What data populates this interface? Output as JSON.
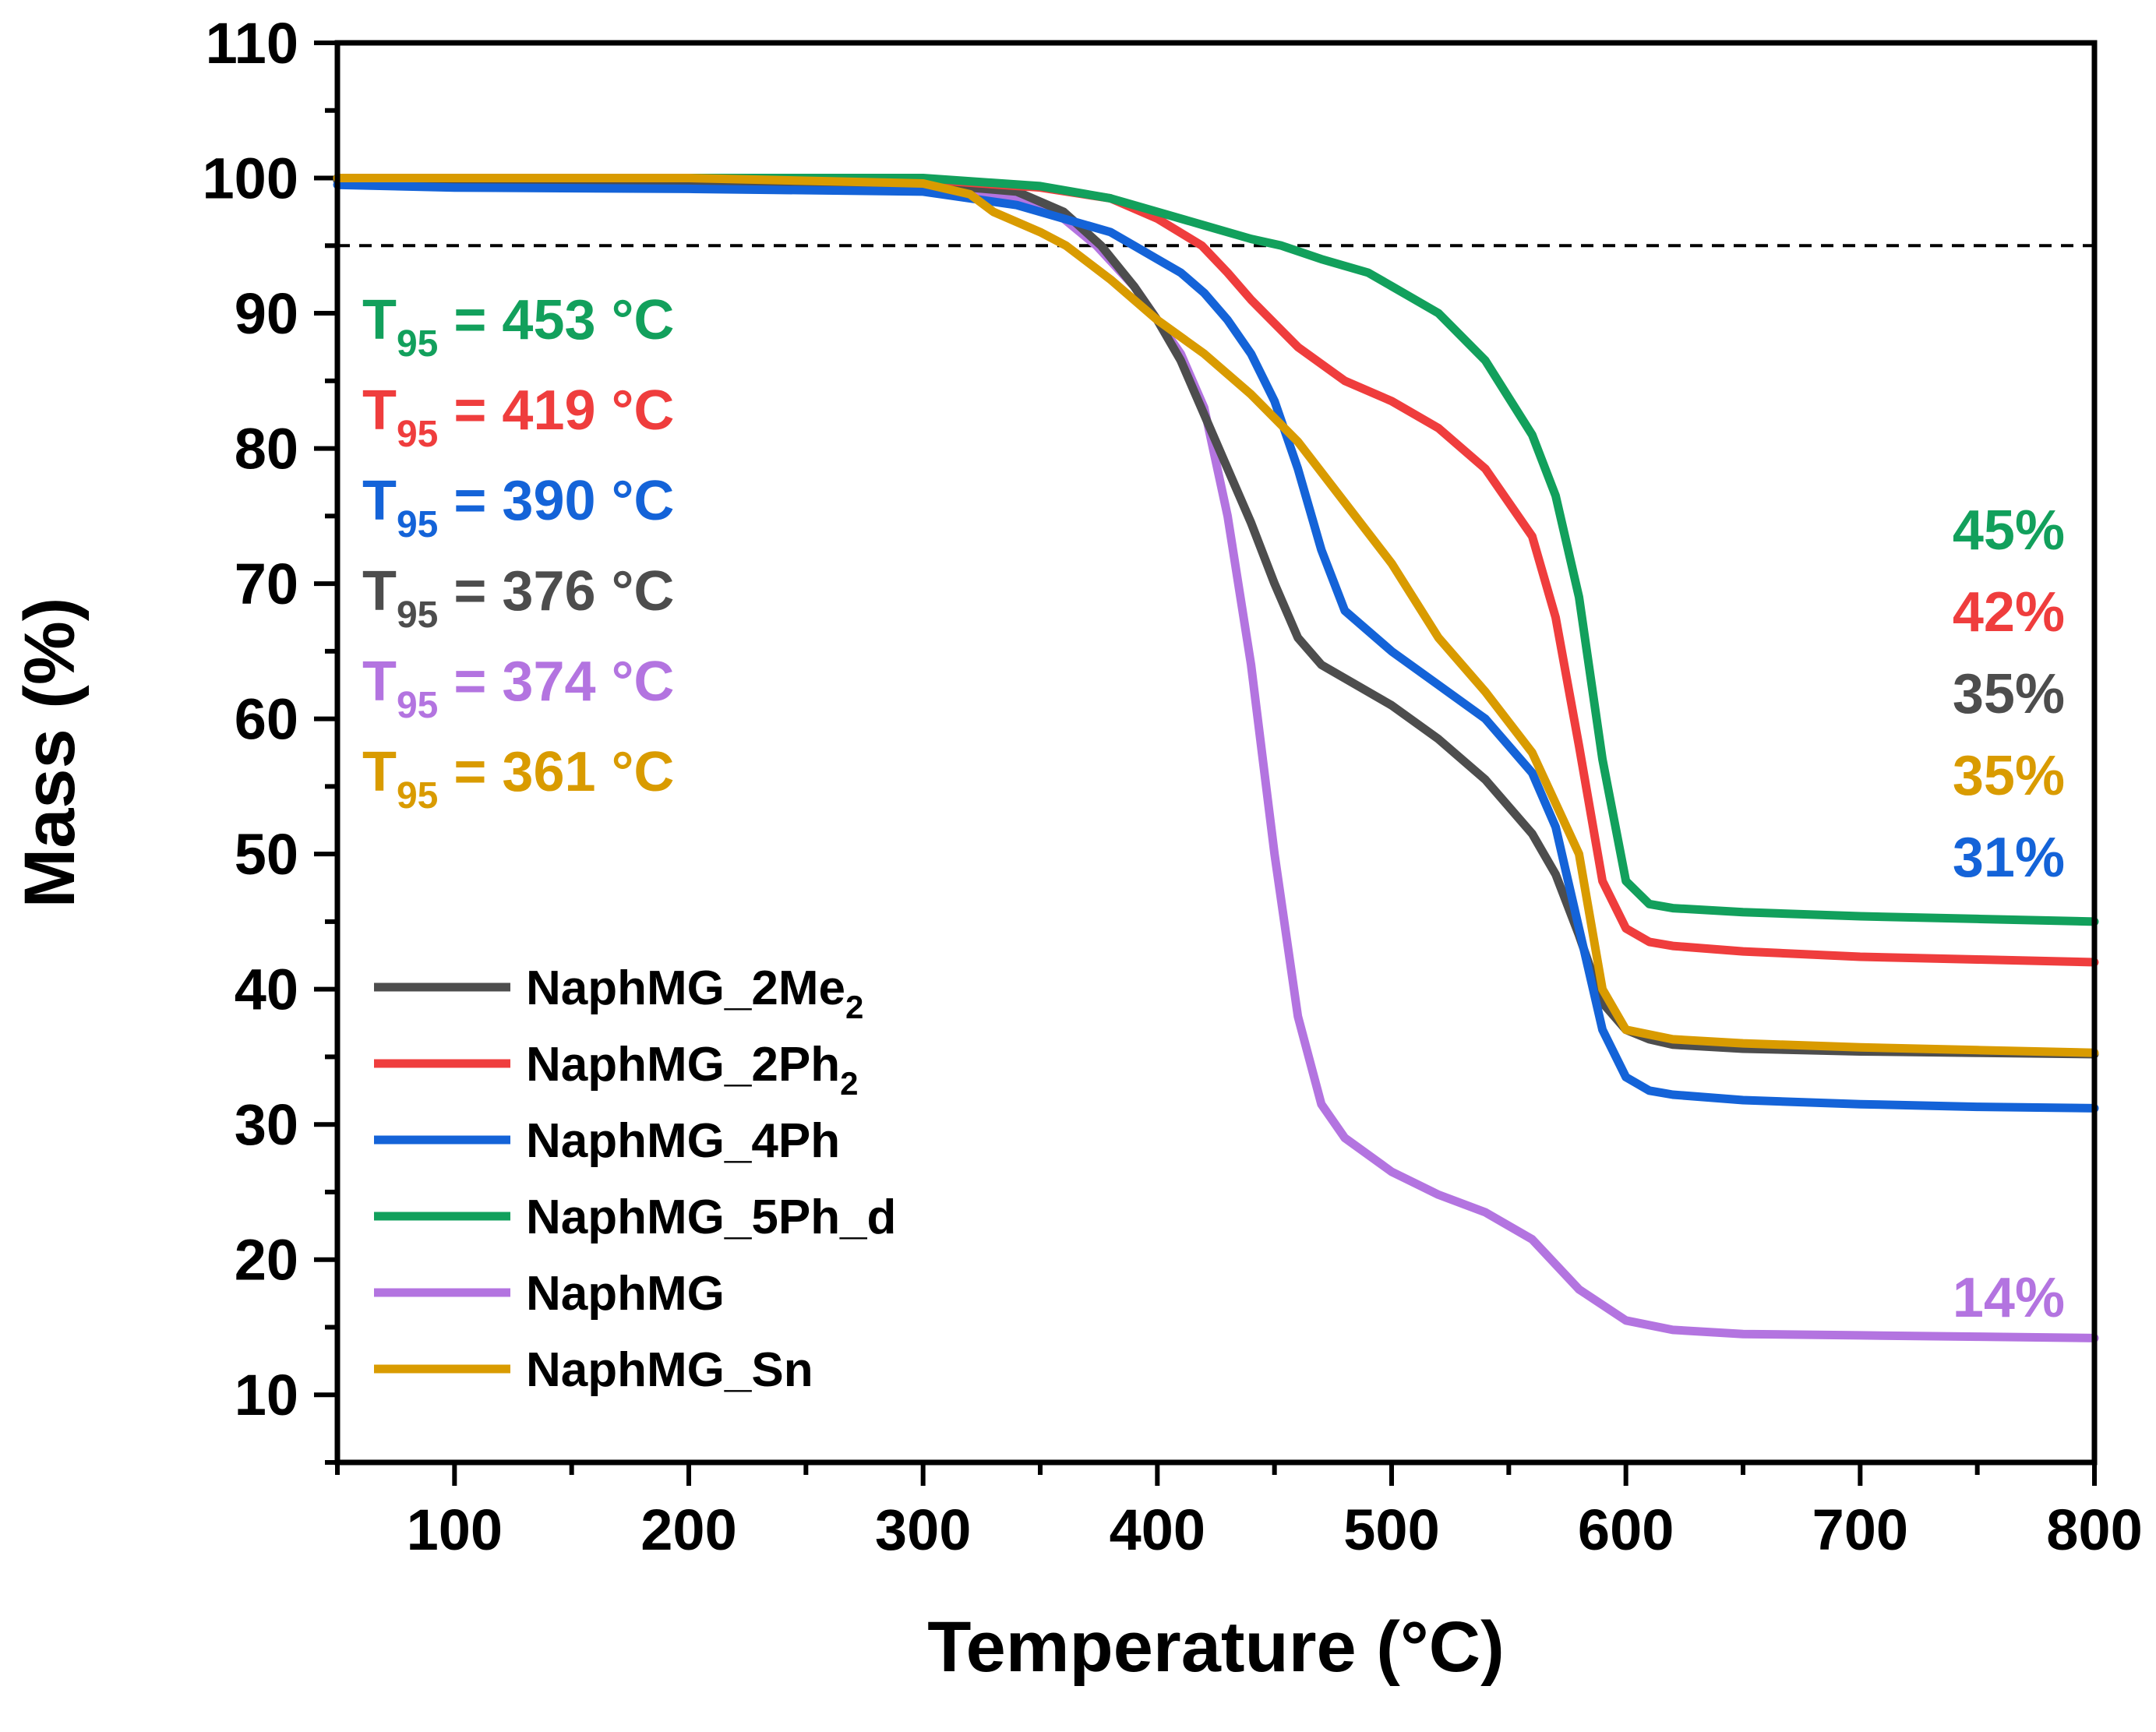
{
  "chart_data": {
    "type": "line",
    "title": "",
    "xlabel": "Temperature (°C)",
    "ylabel": "Mass (%)",
    "xlim": [
      50,
      800
    ],
    "ylim": [
      5,
      110
    ],
    "xticks": [
      100,
      200,
      300,
      400,
      500,
      600,
      700,
      800
    ],
    "yticks": [
      10,
      20,
      30,
      40,
      50,
      60,
      70,
      80,
      90,
      100,
      110
    ],
    "grid": false,
    "legend_placement": "lower-left",
    "reference_line": {
      "y": 95,
      "style": "dashed"
    },
    "series": [
      {
        "name": "NaphMG_2Me",
        "name_subscript": "2",
        "color": "#4d4d4d",
        "t95_label": "376 °C",
        "residue_label": "35%",
        "x": [
          50,
          100,
          200,
          300,
          340,
          360,
          376,
          390,
          400,
          410,
          420,
          430,
          440,
          450,
          460,
          470,
          480,
          500,
          520,
          540,
          560,
          570,
          580,
          590,
          600,
          610,
          620,
          650,
          700,
          750,
          800
        ],
        "y": [
          99.8,
          99.8,
          99.8,
          99.6,
          99.0,
          97.5,
          95.0,
          92.0,
          89.5,
          86.5,
          82.5,
          78.5,
          74.5,
          70.0,
          66.0,
          64.0,
          63.0,
          61.0,
          58.5,
          55.5,
          51.5,
          48.5,
          44.0,
          39.0,
          37.0,
          36.3,
          35.9,
          35.6,
          35.4,
          35.3,
          35.2
        ]
      },
      {
        "name": "NaphMG_2Ph",
        "name_subscript": "2",
        "color": "#ef3d3d",
        "t95_label": "419 °C",
        "residue_label": "42%",
        "x": [
          50,
          100,
          200,
          300,
          350,
          380,
          400,
          419,
          430,
          440,
          460,
          480,
          500,
          520,
          540,
          560,
          570,
          580,
          590,
          600,
          610,
          620,
          650,
          700,
          750,
          800
        ],
        "y": [
          100,
          100,
          100,
          99.9,
          99.3,
          98.5,
          97.0,
          95.0,
          93.0,
          91.0,
          87.5,
          85.0,
          83.5,
          81.5,
          78.5,
          73.5,
          67.5,
          58.0,
          48.0,
          44.5,
          43.5,
          43.2,
          42.8,
          42.4,
          42.2,
          42.0
        ]
      },
      {
        "name": "NaphMG_4Ph",
        "name_subscript": "",
        "color": "#1463d8",
        "t95_label": "390 °C",
        "residue_label": "31%",
        "x": [
          50,
          100,
          200,
          300,
          340,
          360,
          380,
          390,
          400,
          410,
          420,
          430,
          440,
          450,
          460,
          470,
          480,
          500,
          520,
          540,
          560,
          570,
          580,
          590,
          600,
          610,
          620,
          650,
          700,
          750,
          800
        ],
        "y": [
          99.5,
          99.3,
          99.2,
          99.0,
          98.0,
          97.0,
          96.0,
          95.0,
          94.0,
          93.0,
          91.5,
          89.5,
          87.0,
          83.5,
          78.5,
          72.5,
          68.0,
          65.0,
          62.5,
          60.0,
          56.0,
          52.0,
          44.5,
          37.0,
          33.5,
          32.5,
          32.2,
          31.8,
          31.5,
          31.3,
          31.2
        ]
      },
      {
        "name": "NaphMG_5Ph_d",
        "name_subscript": "",
        "color": "#12a05c",
        "t95_label": "453 °C",
        "residue_label": "45%",
        "x": [
          50,
          100,
          200,
          300,
          350,
          380,
          400,
          420,
          440,
          453,
          470,
          490,
          500,
          520,
          540,
          560,
          570,
          580,
          590,
          600,
          610,
          620,
          650,
          700,
          750,
          800
        ],
        "y": [
          100,
          100,
          100,
          100,
          99.4,
          98.5,
          97.5,
          96.5,
          95.5,
          95.0,
          94.0,
          93.0,
          92.0,
          90.0,
          86.5,
          81.0,
          76.5,
          69.0,
          57.0,
          48.0,
          46.3,
          46.0,
          45.7,
          45.4,
          45.2,
          45.0
        ]
      },
      {
        "name": "NaphMG",
        "name_subscript": "",
        "color": "#b374e0",
        "t95_label": "374 °C",
        "residue_label": "14%",
        "x": [
          50,
          100,
          200,
          250,
          300,
          340,
          360,
          374,
          390,
          400,
          410,
          420,
          430,
          440,
          450,
          460,
          470,
          480,
          500,
          520,
          540,
          560,
          580,
          600,
          620,
          650,
          700,
          750,
          800
        ],
        "y": [
          100,
          100,
          100,
          100,
          99.8,
          98.5,
          97.0,
          95.0,
          92.0,
          89.5,
          87.0,
          83.0,
          75.0,
          64.0,
          50.0,
          38.0,
          31.5,
          29.0,
          26.5,
          24.8,
          23.5,
          21.5,
          17.8,
          15.5,
          14.8,
          14.5,
          14.4,
          14.3,
          14.2
        ]
      },
      {
        "name": "NaphMG_Sn",
        "name_subscript": "",
        "color": "#d99b00",
        "t95_label": "361 °C",
        "residue_label": "35%",
        "x": [
          50,
          100,
          200,
          300,
          320,
          330,
          350,
          361,
          380,
          400,
          420,
          440,
          460,
          480,
          500,
          520,
          540,
          560,
          580,
          590,
          600,
          620,
          650,
          700,
          750,
          800
        ],
        "y": [
          100,
          100,
          100,
          99.6,
          98.8,
          97.5,
          96.0,
          95.0,
          92.5,
          89.5,
          87.0,
          84.0,
          80.5,
          76.0,
          71.5,
          66.0,
          62.0,
          57.5,
          50.0,
          40.0,
          37.0,
          36.3,
          36.0,
          35.7,
          35.5,
          35.3
        ]
      }
    ],
    "t95_prefix": "T",
    "t95_subscript": "95",
    "t95_equals": "= "
  }
}
